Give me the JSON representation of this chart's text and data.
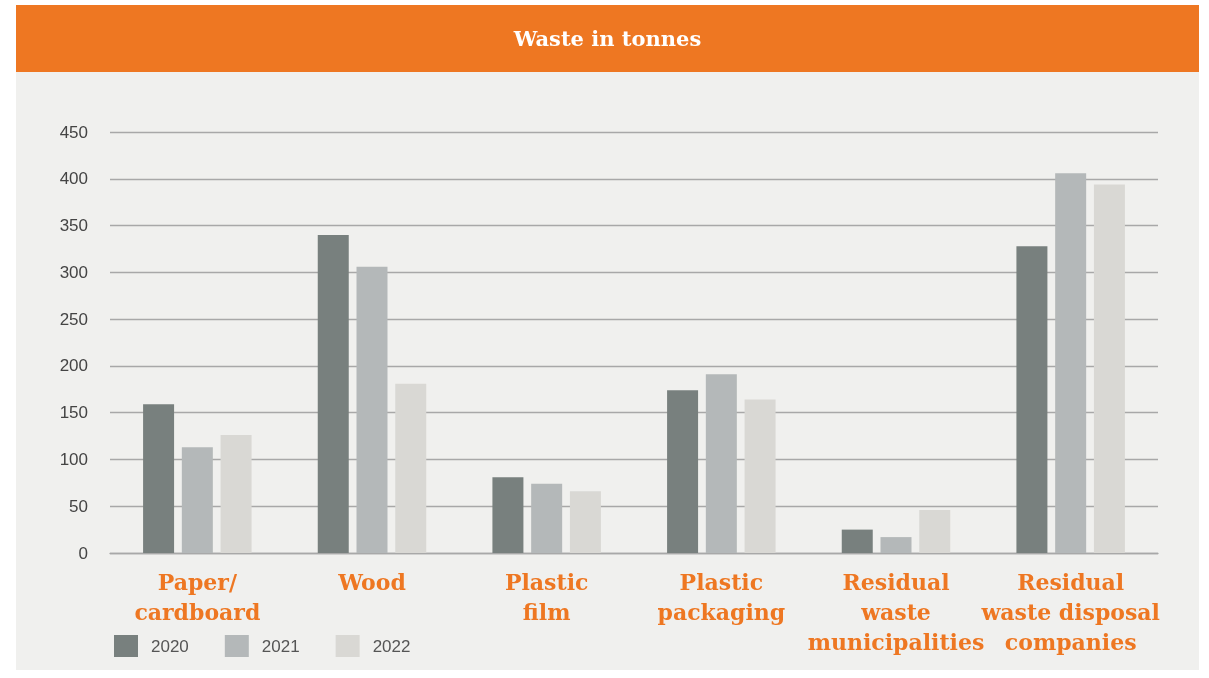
{
  "chart_data": {
    "type": "bar",
    "title": "Waste in tonnes",
    "categories": [
      "Paper/\ncardboard",
      "Wood",
      "Plastic\nfilm",
      "Plastic\npackaging",
      "Residual\nwaste\nmunicipalities",
      "Residual\nwaste disposal\ncompanies"
    ],
    "series": [
      {
        "name": "2020",
        "color": "#78807e",
        "values": [
          159,
          340,
          81,
          174,
          25,
          328
        ]
      },
      {
        "name": "2021",
        "color": "#b4b8b9",
        "values": [
          113,
          306,
          74,
          191,
          17,
          406
        ]
      },
      {
        "name": "2022",
        "color": "#d9d8d4",
        "values": [
          126,
          181,
          66,
          164,
          46,
          394
        ]
      }
    ],
    "ylim": [
      0,
      450
    ],
    "yticks": [
      0,
      50,
      100,
      150,
      200,
      250,
      300,
      350,
      400,
      450
    ],
    "grid": "y",
    "legend": "bottom left"
  }
}
